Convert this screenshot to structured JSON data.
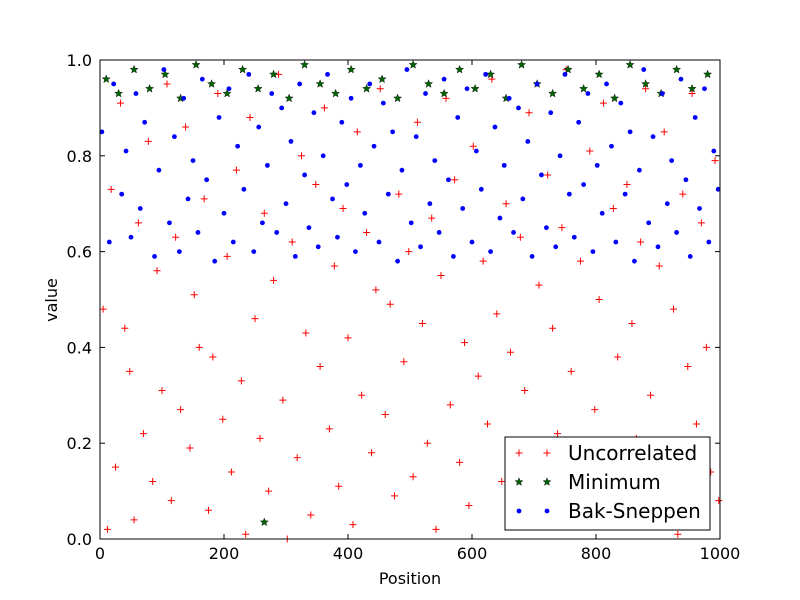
{
  "chart_data": {
    "type": "scatter",
    "title": "",
    "xlabel": "Position",
    "ylabel": "value",
    "xlim": [
      0,
      1000
    ],
    "ylim": [
      0.0,
      1.0
    ],
    "xticks": [
      0,
      200,
      400,
      600,
      800,
      1000
    ],
    "yticks": [
      0.0,
      0.2,
      0.4,
      0.6,
      0.8,
      1.0
    ],
    "xtick_labels": [
      "0",
      "200",
      "400",
      "600",
      "800",
      "1000"
    ],
    "ytick_labels": [
      "0.0",
      "0.2",
      "0.4",
      "0.6",
      "0.8",
      "1.0"
    ],
    "grid": false,
    "legend_position": "lower-right",
    "series": [
      {
        "name": "Uncorrelated",
        "marker": "plus",
        "color": "#ff0000",
        "points": [
          [
            5,
            0.48
          ],
          [
            12,
            0.02
          ],
          [
            18,
            0.73
          ],
          [
            25,
            0.15
          ],
          [
            33,
            0.91
          ],
          [
            40,
            0.44
          ],
          [
            48,
            0.35
          ],
          [
            55,
            0.04
          ],
          [
            62,
            0.66
          ],
          [
            70,
            0.22
          ],
          [
            78,
            0.83
          ],
          [
            85,
            0.12
          ],
          [
            92,
            0.56
          ],
          [
            100,
            0.31
          ],
          [
            108,
            0.95
          ],
          [
            115,
            0.08
          ],
          [
            122,
            0.63
          ],
          [
            130,
            0.27
          ],
          [
            138,
            0.86
          ],
          [
            145,
            0.19
          ],
          [
            152,
            0.51
          ],
          [
            160,
            0.4
          ],
          [
            168,
            0.71
          ],
          [
            175,
            0.06
          ],
          [
            182,
            0.38
          ],
          [
            190,
            0.93
          ],
          [
            198,
            0.25
          ],
          [
            205,
            0.59
          ],
          [
            212,
            0.14
          ],
          [
            220,
            0.77
          ],
          [
            228,
            0.33
          ],
          [
            235,
            0.01
          ],
          [
            242,
            0.88
          ],
          [
            250,
            0.46
          ],
          [
            258,
            0.21
          ],
          [
            265,
            0.68
          ],
          [
            272,
            0.1
          ],
          [
            280,
            0.54
          ],
          [
            288,
            0.97
          ],
          [
            295,
            0.29
          ],
          [
            302,
            0.0
          ],
          [
            310,
            0.62
          ],
          [
            318,
            0.17
          ],
          [
            325,
            0.8
          ],
          [
            332,
            0.43
          ],
          [
            340,
            0.05
          ],
          [
            348,
            0.74
          ],
          [
            355,
            0.36
          ],
          [
            362,
            0.9
          ],
          [
            370,
            0.23
          ],
          [
            378,
            0.57
          ],
          [
            385,
            0.11
          ],
          [
            392,
            0.69
          ],
          [
            400,
            0.42
          ],
          [
            408,
            0.03
          ],
          [
            415,
            0.85
          ],
          [
            422,
            0.3
          ],
          [
            430,
            0.64
          ],
          [
            438,
            0.18
          ],
          [
            445,
            0.52
          ],
          [
            452,
            0.94
          ],
          [
            460,
            0.26
          ],
          [
            468,
            0.49
          ],
          [
            475,
            0.09
          ],
          [
            482,
            0.72
          ],
          [
            490,
            0.37
          ],
          [
            498,
            0.6
          ],
          [
            505,
            0.13
          ],
          [
            512,
            0.87
          ],
          [
            520,
            0.45
          ],
          [
            528,
            0.2
          ],
          [
            535,
            0.67
          ],
          [
            542,
            0.02
          ],
          [
            550,
            0.55
          ],
          [
            558,
            0.92
          ],
          [
            565,
            0.28
          ],
          [
            572,
            0.75
          ],
          [
            580,
            0.16
          ],
          [
            588,
            0.41
          ],
          [
            595,
            0.07
          ],
          [
            602,
            0.82
          ],
          [
            610,
            0.34
          ],
          [
            618,
            0.58
          ],
          [
            625,
            0.24
          ],
          [
            632,
            0.96
          ],
          [
            640,
            0.47
          ],
          [
            648,
            0.12
          ],
          [
            655,
            0.7
          ],
          [
            662,
            0.39
          ],
          [
            670,
            0.04
          ],
          [
            678,
            0.63
          ],
          [
            685,
            0.31
          ],
          [
            692,
            0.89
          ],
          [
            700,
            0.18
          ],
          [
            708,
            0.53
          ],
          [
            715,
            0.08
          ],
          [
            722,
            0.76
          ],
          [
            730,
            0.44
          ],
          [
            738,
            0.22
          ],
          [
            745,
            0.65
          ],
          [
            752,
            0.98
          ],
          [
            760,
            0.35
          ],
          [
            768,
            0.15
          ],
          [
            775,
            0.58
          ],
          [
            782,
            0.06
          ],
          [
            790,
            0.81
          ],
          [
            798,
            0.27
          ],
          [
            805,
            0.5
          ],
          [
            812,
            0.91
          ],
          [
            820,
            0.12
          ],
          [
            828,
            0.69
          ],
          [
            835,
            0.38
          ],
          [
            842,
            0.03
          ],
          [
            850,
            0.74
          ],
          [
            858,
            0.45
          ],
          [
            865,
            0.21
          ],
          [
            872,
            0.62
          ],
          [
            880,
            0.94
          ],
          [
            888,
            0.3
          ],
          [
            895,
            0.1
          ],
          [
            902,
            0.57
          ],
          [
            910,
            0.85
          ],
          [
            918,
            0.17
          ],
          [
            925,
            0.48
          ],
          [
            932,
            0.01
          ],
          [
            940,
            0.72
          ],
          [
            948,
            0.36
          ],
          [
            955,
            0.93
          ],
          [
            962,
            0.24
          ],
          [
            970,
            0.66
          ],
          [
            978,
            0.4
          ],
          [
            985,
            0.14
          ],
          [
            992,
            0.79
          ],
          [
            998,
            0.08
          ]
        ]
      },
      {
        "name": "Minimum",
        "marker": "star",
        "color": "#006400",
        "points": [
          [
            265,
            0.035
          ],
          [
            10,
            0.96
          ],
          [
            30,
            0.93
          ],
          [
            55,
            0.98
          ],
          [
            80,
            0.94
          ],
          [
            105,
            0.97
          ],
          [
            130,
            0.92
          ],
          [
            155,
            0.99
          ],
          [
            180,
            0.95
          ],
          [
            205,
            0.93
          ],
          [
            230,
            0.98
          ],
          [
            255,
            0.94
          ],
          [
            280,
            0.97
          ],
          [
            305,
            0.92
          ],
          [
            330,
            0.99
          ],
          [
            355,
            0.95
          ],
          [
            380,
            0.93
          ],
          [
            405,
            0.98
          ],
          [
            430,
            0.94
          ],
          [
            455,
            0.96
          ],
          [
            480,
            0.92
          ],
          [
            505,
            0.99
          ],
          [
            530,
            0.95
          ],
          [
            555,
            0.93
          ],
          [
            580,
            0.98
          ],
          [
            605,
            0.94
          ],
          [
            630,
            0.97
          ],
          [
            655,
            0.92
          ],
          [
            680,
            0.99
          ],
          [
            705,
            0.95
          ],
          [
            730,
            0.93
          ],
          [
            755,
            0.98
          ],
          [
            780,
            0.94
          ],
          [
            805,
            0.97
          ],
          [
            830,
            0.92
          ],
          [
            855,
            0.99
          ],
          [
            880,
            0.95
          ],
          [
            905,
            0.93
          ],
          [
            930,
            0.98
          ],
          [
            955,
            0.94
          ],
          [
            980,
            0.97
          ]
        ]
      },
      {
        "name": "Bak-Sneppen",
        "marker": "dot",
        "color": "#0000ff",
        "points": [
          [
            3,
            0.85
          ],
          [
            15,
            0.62
          ],
          [
            22,
            0.95
          ],
          [
            35,
            0.72
          ],
          [
            42,
            0.81
          ],
          [
            50,
            0.63
          ],
          [
            58,
            0.93
          ],
          [
            65,
            0.69
          ],
          [
            72,
            0.87
          ],
          [
            88,
            0.59
          ],
          [
            95,
            0.77
          ],
          [
            103,
            0.98
          ],
          [
            112,
            0.66
          ],
          [
            120,
            0.84
          ],
          [
            128,
            0.6
          ],
          [
            135,
            0.92
          ],
          [
            142,
            0.71
          ],
          [
            150,
            0.79
          ],
          [
            158,
            0.64
          ],
          [
            165,
            0.96
          ],
          [
            172,
            0.75
          ],
          [
            185,
            0.58
          ],
          [
            192,
            0.88
          ],
          [
            200,
            0.68
          ],
          [
            208,
            0.94
          ],
          [
            215,
            0.62
          ],
          [
            222,
            0.82
          ],
          [
            232,
            0.73
          ],
          [
            240,
            0.97
          ],
          [
            248,
            0.6
          ],
          [
            256,
            0.86
          ],
          [
            262,
            0.66
          ],
          [
            270,
            0.78
          ],
          [
            277,
            0.93
          ],
          [
            285,
            0.64
          ],
          [
            293,
            0.9
          ],
          [
            300,
            0.7
          ],
          [
            308,
            0.83
          ],
          [
            315,
            0.59
          ],
          [
            322,
            0.95
          ],
          [
            330,
            0.76
          ],
          [
            337,
            0.65
          ],
          [
            345,
            0.89
          ],
          [
            352,
            0.61
          ],
          [
            360,
            0.8
          ],
          [
            367,
            0.97
          ],
          [
            375,
            0.71
          ],
          [
            383,
            0.63
          ],
          [
            390,
            0.87
          ],
          [
            398,
            0.74
          ],
          [
            405,
            0.92
          ],
          [
            412,
            0.6
          ],
          [
            420,
            0.78
          ],
          [
            427,
            0.68
          ],
          [
            435,
            0.95
          ],
          [
            442,
            0.82
          ],
          [
            450,
            0.62
          ],
          [
            457,
            0.91
          ],
          [
            465,
            0.72
          ],
          [
            472,
            0.85
          ],
          [
            480,
            0.58
          ],
          [
            487,
            0.77
          ],
          [
            495,
            0.98
          ],
          [
            502,
            0.66
          ],
          [
            510,
            0.84
          ],
          [
            517,
            0.61
          ],
          [
            525,
            0.93
          ],
          [
            532,
            0.7
          ],
          [
            540,
            0.79
          ],
          [
            547,
            0.64
          ],
          [
            555,
            0.96
          ],
          [
            562,
            0.75
          ],
          [
            570,
            0.59
          ],
          [
            577,
            0.88
          ],
          [
            585,
            0.69
          ],
          [
            592,
            0.94
          ],
          [
            600,
            0.62
          ],
          [
            607,
            0.81
          ],
          [
            615,
            0.73
          ],
          [
            622,
            0.97
          ],
          [
            630,
            0.6
          ],
          [
            637,
            0.86
          ],
          [
            645,
            0.67
          ],
          [
            652,
            0.78
          ],
          [
            660,
            0.92
          ],
          [
            667,
            0.64
          ],
          [
            675,
            0.9
          ],
          [
            682,
            0.71
          ],
          [
            690,
            0.83
          ],
          [
            697,
            0.59
          ],
          [
            705,
            0.95
          ],
          [
            712,
            0.76
          ],
          [
            720,
            0.65
          ],
          [
            727,
            0.89
          ],
          [
            735,
            0.61
          ],
          [
            742,
            0.8
          ],
          [
            750,
            0.97
          ],
          [
            757,
            0.72
          ],
          [
            765,
            0.63
          ],
          [
            772,
            0.87
          ],
          [
            780,
            0.74
          ],
          [
            787,
            0.93
          ],
          [
            795,
            0.6
          ],
          [
            802,
            0.78
          ],
          [
            810,
            0.68
          ],
          [
            817,
            0.95
          ],
          [
            825,
            0.82
          ],
          [
            832,
            0.62
          ],
          [
            840,
            0.91
          ],
          [
            847,
            0.72
          ],
          [
            855,
            0.85
          ],
          [
            862,
            0.58
          ],
          [
            870,
            0.77
          ],
          [
            877,
            0.98
          ],
          [
            885,
            0.66
          ],
          [
            892,
            0.84
          ],
          [
            900,
            0.61
          ],
          [
            907,
            0.93
          ],
          [
            915,
            0.7
          ],
          [
            922,
            0.79
          ],
          [
            930,
            0.64
          ],
          [
            937,
            0.96
          ],
          [
            945,
            0.75
          ],
          [
            952,
            0.59
          ],
          [
            960,
            0.88
          ],
          [
            967,
            0.69
          ],
          [
            975,
            0.94
          ],
          [
            982,
            0.62
          ],
          [
            990,
            0.81
          ],
          [
            997,
            0.73
          ]
        ]
      }
    ]
  }
}
